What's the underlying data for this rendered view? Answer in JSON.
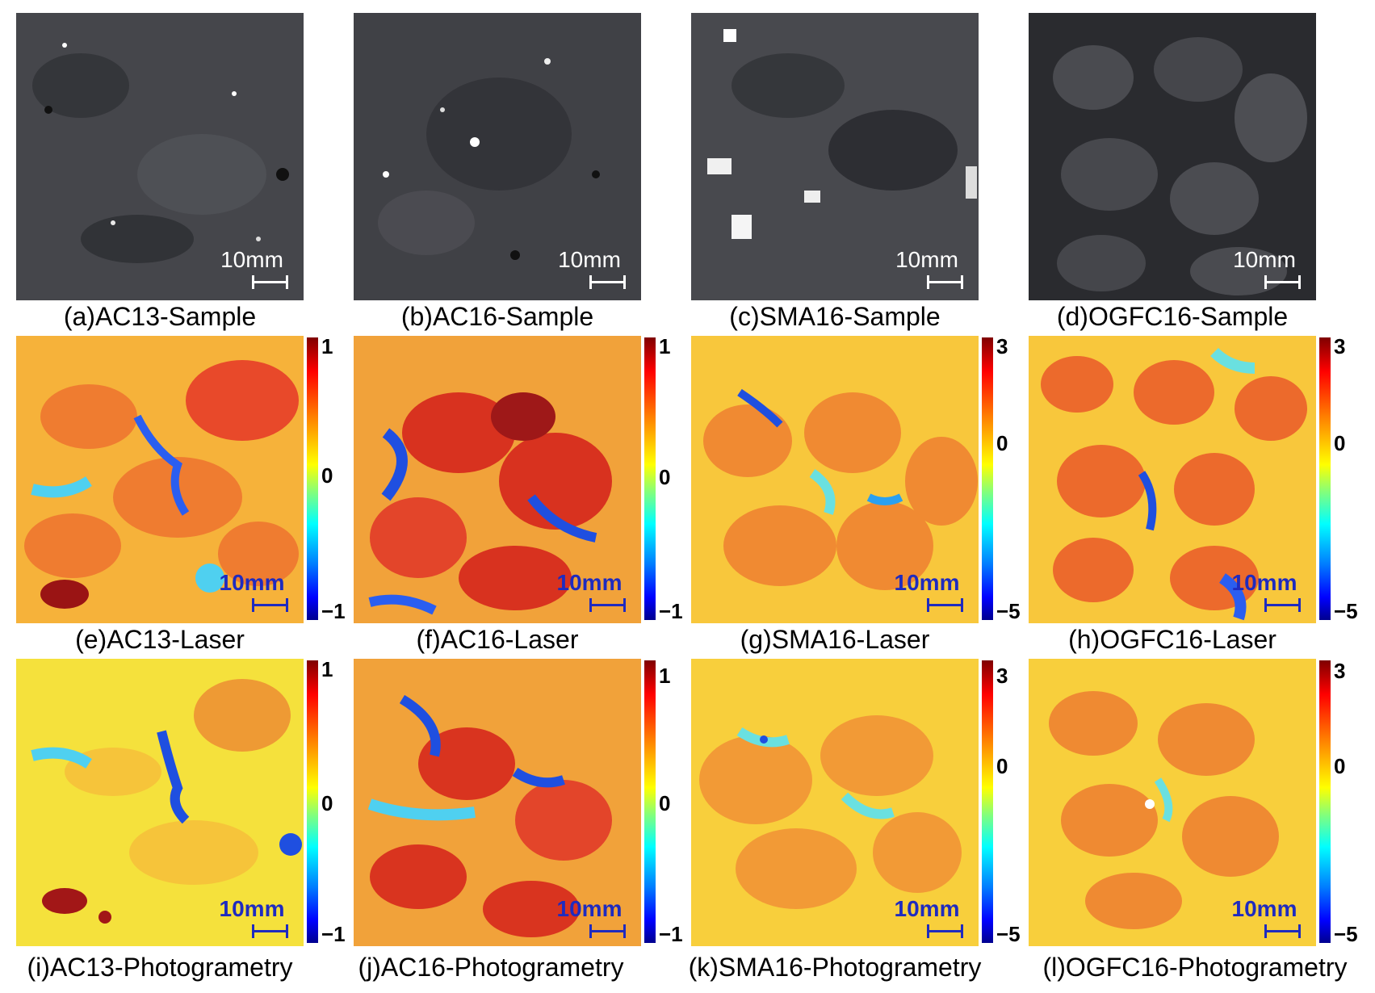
{
  "scale_label": "10mm",
  "captions": {
    "a": "(a)AC13-Sample",
    "b": "(b)AC16-Sample",
    "c": "(c)SMA16-Sample",
    "d": "(d)OGFC16-Sample",
    "e": "(e)AC13-Laser",
    "f": "(f)AC16-Laser",
    "g": "(g)SMA16-Laser",
    "h": "(h)OGFC16-Laser",
    "i": "(i)AC13-Photogrametry",
    "j": "(j)AC16-Photogrametry",
    "k": "(k)SMA16-Photogrametry",
    "l": "(l)OGFC16-Photogrametry"
  },
  "colorbars": {
    "ac": {
      "max": "1",
      "mid": "0",
      "min": "−1"
    },
    "sma_ogfc": {
      "max": "3",
      "mid": "0",
      "min": "−5"
    }
  },
  "colors": {
    "sample_gray": "#3c3d42",
    "map_orange": "#f2a23a",
    "scalebar_blue": "#1f2bbf"
  }
}
